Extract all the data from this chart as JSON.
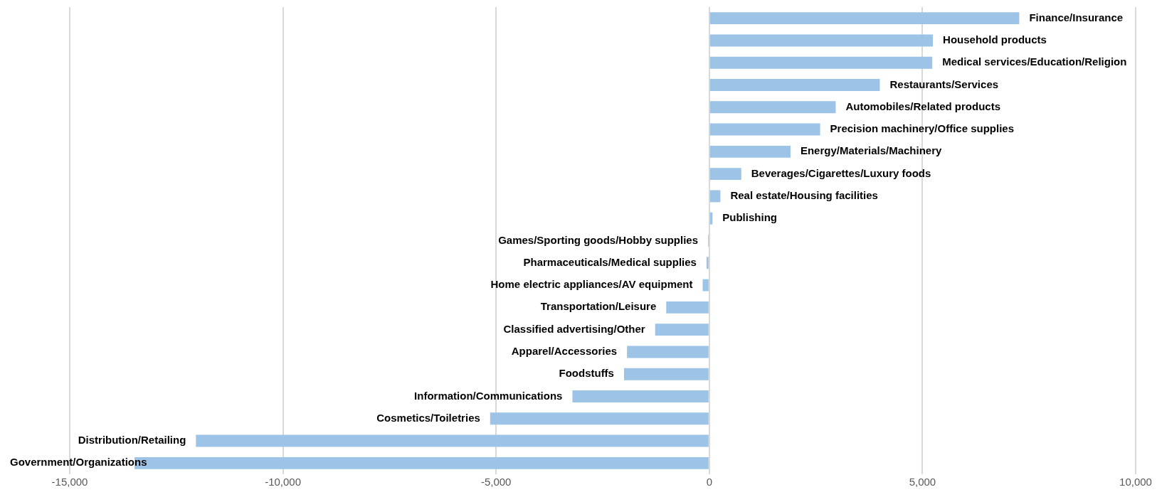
{
  "chart_data": {
    "type": "bar",
    "orientation": "horizontal",
    "categories": [
      "Finance/Insurance",
      "Household products",
      "Medical services/Education/Religion",
      "Restaurants/Services",
      "Automobiles/Related products",
      "Precision machinery/Office supplies",
      "Energy/Materials/Machinery",
      "Beverages/Cigarettes/Luxury foods",
      "Real estate/Housing facilities",
      "Publishing",
      "Games/Sporting goods/Hobby supplies",
      "Pharmaceuticals/Medical supplies",
      "Home electric appliances/AV equipment",
      "Transportation/Leisure",
      "Classified advertising/Other",
      "Apparel/Accessories",
      "Foodstuffs",
      "Information/Communications",
      "Cosmetics/Toiletries",
      "Distribution/Retailing",
      "Government/Organizations"
    ],
    "values": [
      7270,
      5245,
      5230,
      4000,
      2965,
      2600,
      1905,
      750,
      260,
      75,
      -30,
      -65,
      -155,
      -1010,
      -1270,
      -1930,
      -2000,
      -3210,
      -5140,
      -12040,
      -13480
    ],
    "color": "#9dc3e6",
    "xlim": [
      -15000,
      10000
    ],
    "xticks": [
      {
        "value": -15000,
        "label": "-15,000"
      },
      {
        "value": -10000,
        "label": "-10,000"
      },
      {
        "value": -5000,
        "label": "-5,000"
      },
      0,
      {
        "value": 5000,
        "label": "5,000"
      },
      {
        "value": 10000,
        "label": "10,000"
      }
    ],
    "grid": "x",
    "legend": false
  }
}
